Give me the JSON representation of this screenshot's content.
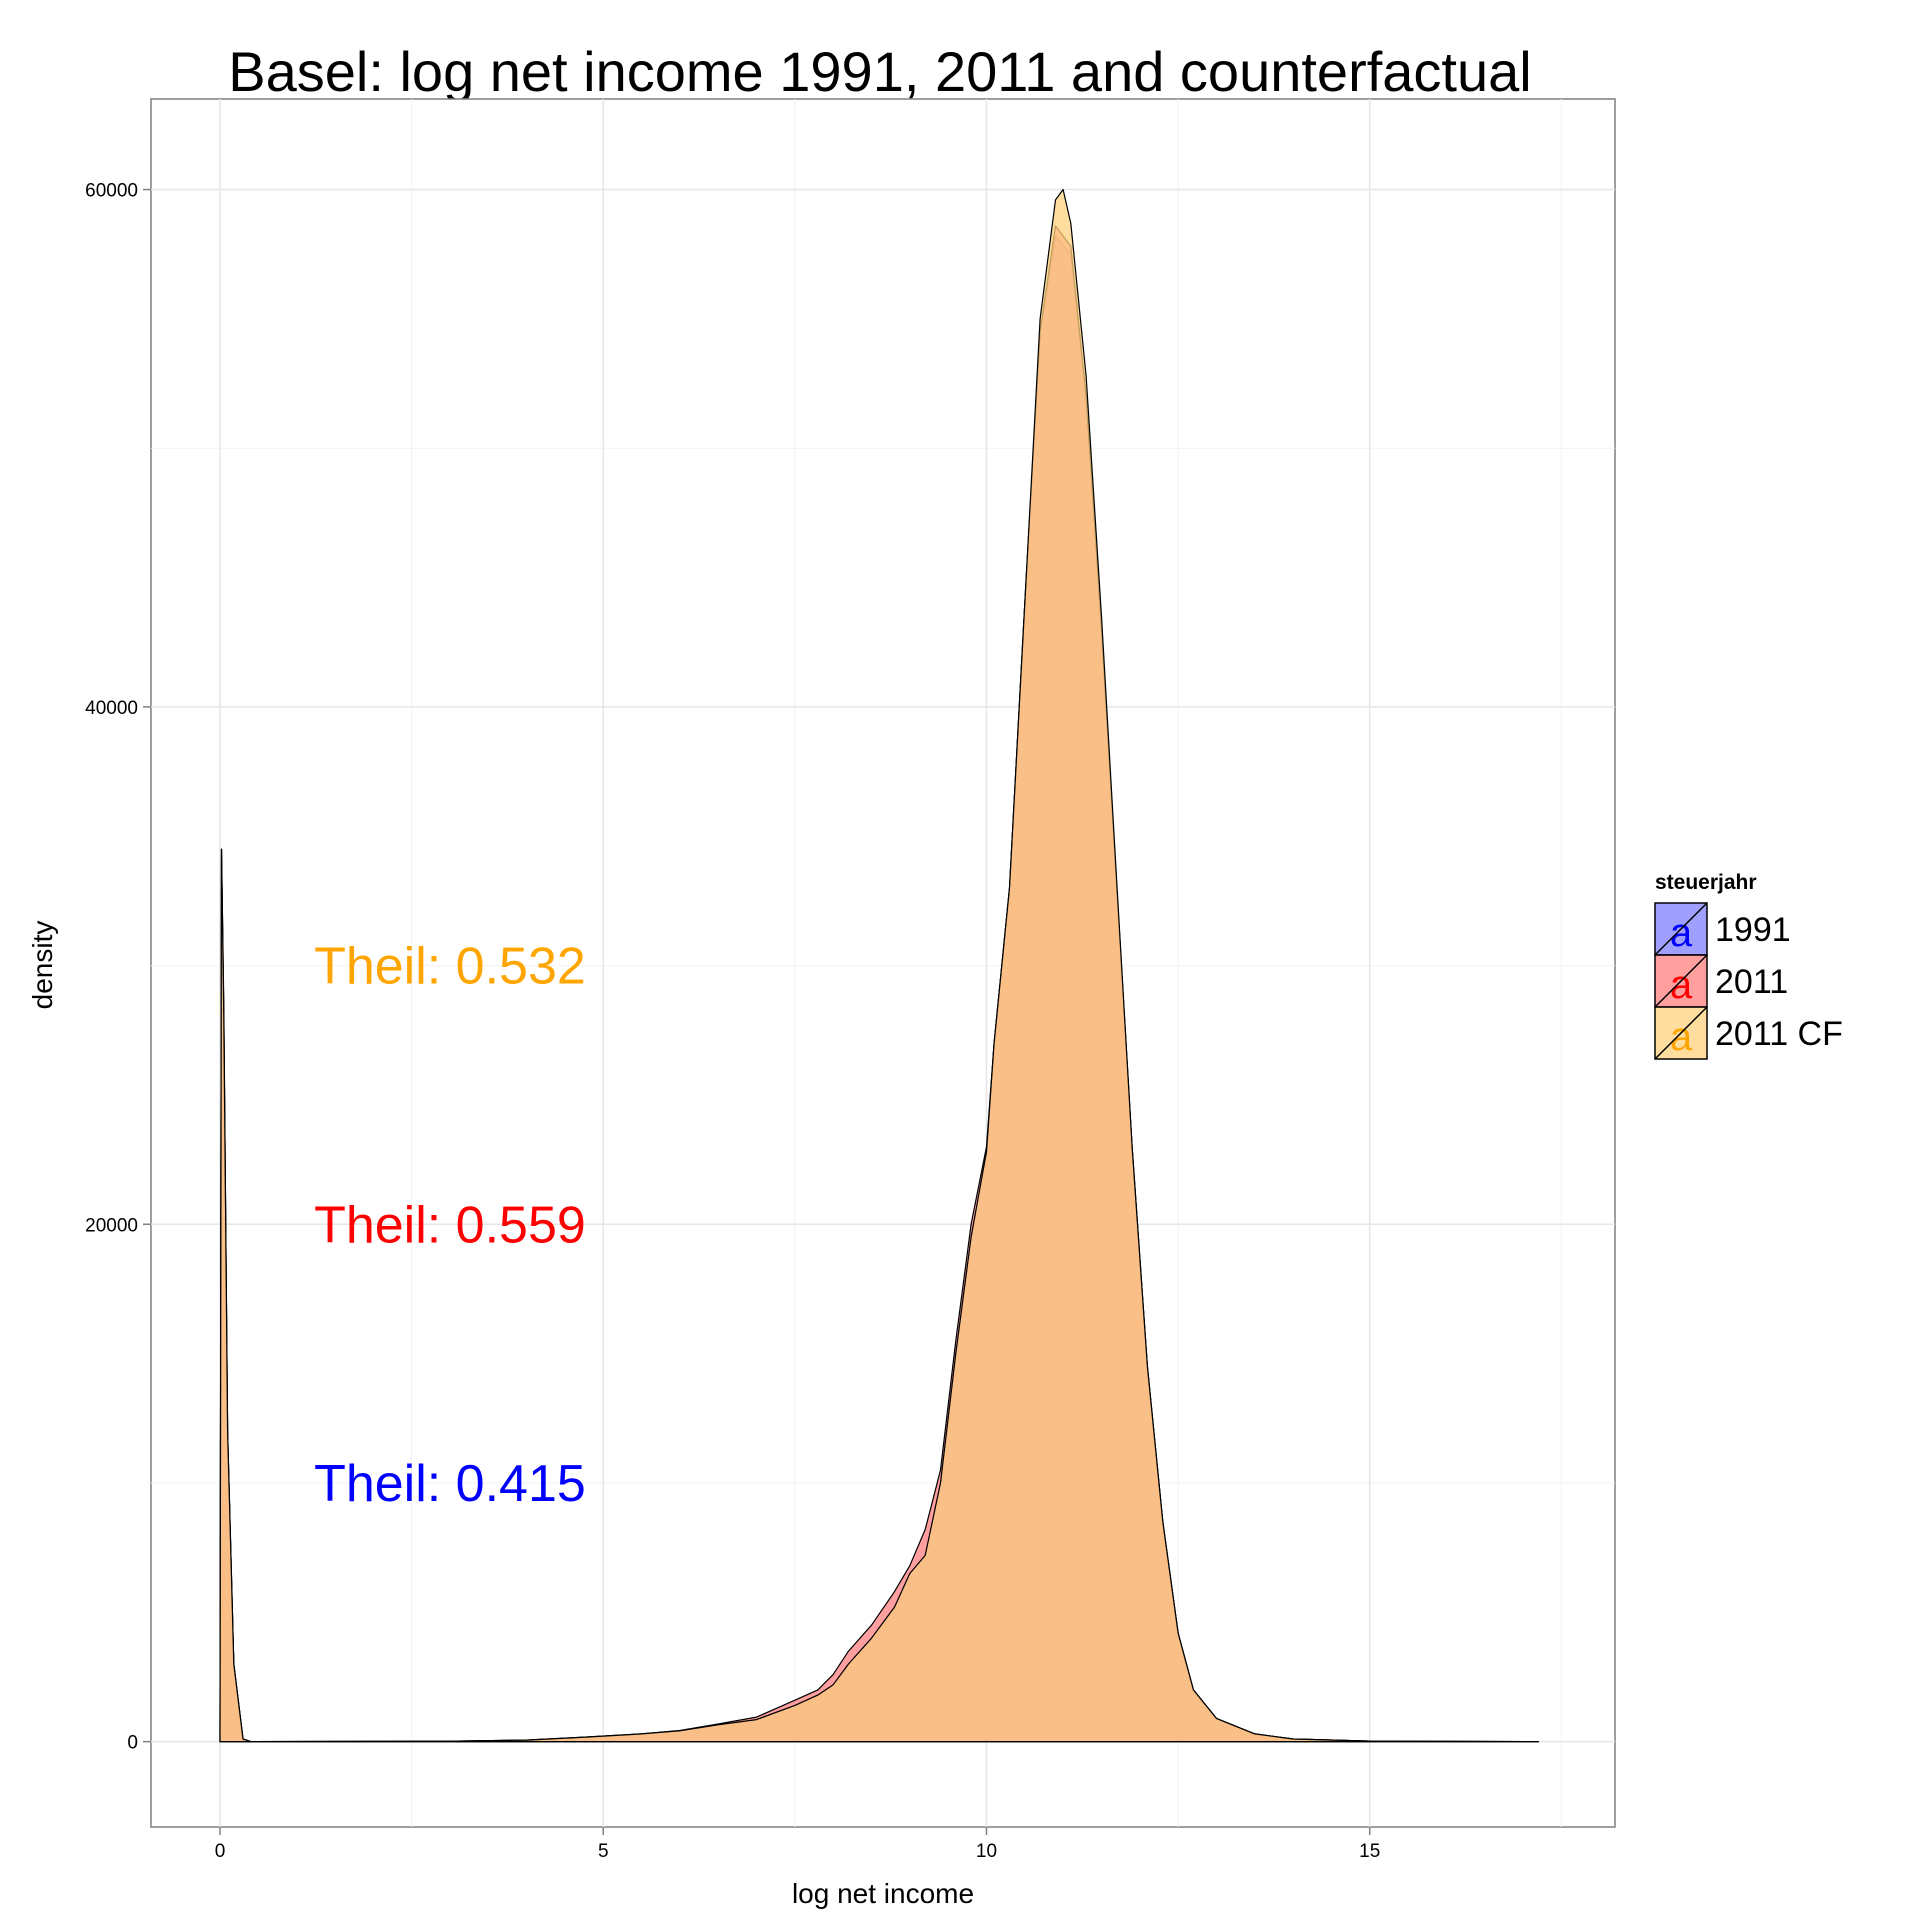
{
  "chart_data": {
    "type": "area",
    "subtype": "density",
    "title": "Basel: log net income 1991, 2011 and counterfactual",
    "xlabel": "log net income",
    "ylabel": "density",
    "xlim": [
      -0.9,
      18.2
    ],
    "ylim": [
      -3300,
      63500
    ],
    "x_ticks": [
      0,
      5,
      10,
      15
    ],
    "y_ticks": [
      0,
      20000,
      40000,
      60000
    ],
    "grid": true,
    "legend": {
      "title": "steuerjahr",
      "position": "right",
      "glyph": "a"
    },
    "series": [
      {
        "name": "1991",
        "color": "#0000ff",
        "fill": "#7f7fff",
        "points": [
          [
            0,
            0
          ],
          [
            0.02,
            34500
          ],
          [
            0.05,
            28000
          ],
          [
            0.1,
            12000
          ],
          [
            0.18,
            3000
          ],
          [
            0.3,
            100
          ],
          [
            0.4,
            0
          ],
          [
            3,
            15
          ],
          [
            4,
            60
          ],
          [
            4.8,
            180
          ],
          [
            5.5,
            300
          ],
          [
            6,
            420
          ],
          [
            6.5,
            650
          ],
          [
            7,
            850
          ],
          [
            7.5,
            1400
          ],
          [
            7.8,
            1800
          ],
          [
            8,
            2200
          ],
          [
            8.2,
            3000
          ],
          [
            8.5,
            4000
          ],
          [
            8.8,
            5200
          ],
          [
            9,
            6500
          ],
          [
            9.2,
            7200
          ],
          [
            9.4,
            10000
          ],
          [
            9.6,
            15000
          ],
          [
            9.8,
            19500
          ],
          [
            10,
            22800
          ],
          [
            10.1,
            27000
          ],
          [
            10.3,
            33000
          ],
          [
            10.5,
            44000
          ],
          [
            10.7,
            54500
          ],
          [
            10.9,
            58200
          ],
          [
            11.1,
            57500
          ],
          [
            11.3,
            52000
          ],
          [
            11.5,
            43000
          ],
          [
            11.7,
            33000
          ],
          [
            11.9,
            23000
          ],
          [
            12.1,
            14500
          ],
          [
            12.3,
            8500
          ],
          [
            12.5,
            4200
          ],
          [
            12.7,
            2000
          ],
          [
            13,
            900
          ],
          [
            13.5,
            300
          ],
          [
            14,
            100
          ],
          [
            15,
            20
          ],
          [
            17.2,
            0
          ]
        ]
      },
      {
        "name": "2011",
        "color": "#ff0000",
        "fill": "#ff7f7f",
        "points": [
          [
            0,
            0
          ],
          [
            0.02,
            34500
          ],
          [
            0.05,
            28500
          ],
          [
            0.1,
            12000
          ],
          [
            0.18,
            3000
          ],
          [
            0.3,
            100
          ],
          [
            0.4,
            0
          ],
          [
            3,
            15
          ],
          [
            4,
            60
          ],
          [
            4.8,
            180
          ],
          [
            5.5,
            300
          ],
          [
            6,
            430
          ],
          [
            6.5,
            680
          ],
          [
            7,
            950
          ],
          [
            7.5,
            1600
          ],
          [
            7.8,
            2000
          ],
          [
            8,
            2600
          ],
          [
            8.2,
            3500
          ],
          [
            8.5,
            4500
          ],
          [
            8.8,
            5800
          ],
          [
            9,
            6800
          ],
          [
            9.2,
            8200
          ],
          [
            9.4,
            10500
          ],
          [
            9.6,
            15500
          ],
          [
            9.8,
            20000
          ],
          [
            10,
            23000
          ],
          [
            10.1,
            27000
          ],
          [
            10.3,
            33000
          ],
          [
            10.5,
            44000
          ],
          [
            10.7,
            54500
          ],
          [
            10.9,
            58600
          ],
          [
            11.1,
            57800
          ],
          [
            11.3,
            52000
          ],
          [
            11.5,
            43000
          ],
          [
            11.7,
            33000
          ],
          [
            11.9,
            23000
          ],
          [
            12.1,
            14500
          ],
          [
            12.3,
            8500
          ],
          [
            12.5,
            4200
          ],
          [
            12.7,
            2000
          ],
          [
            13,
            900
          ],
          [
            13.5,
            300
          ],
          [
            14,
            100
          ],
          [
            15,
            20
          ],
          [
            17.2,
            0
          ]
        ]
      },
      {
        "name": "2011 CF",
        "color": "#ffa500",
        "fill": "#ffd27f",
        "points": [
          [
            0,
            0
          ],
          [
            0.02,
            34500
          ],
          [
            0.05,
            28000
          ],
          [
            0.1,
            12000
          ],
          [
            0.18,
            3000
          ],
          [
            0.3,
            100
          ],
          [
            0.4,
            0
          ],
          [
            3,
            15
          ],
          [
            4,
            60
          ],
          [
            4.8,
            180
          ],
          [
            5.5,
            300
          ],
          [
            6,
            420
          ],
          [
            6.5,
            650
          ],
          [
            7,
            850
          ],
          [
            7.5,
            1400
          ],
          [
            7.8,
            1800
          ],
          [
            8,
            2200
          ],
          [
            8.2,
            3000
          ],
          [
            8.5,
            4000
          ],
          [
            8.8,
            5200
          ],
          [
            9,
            6500
          ],
          [
            9.2,
            7200
          ],
          [
            9.4,
            10000
          ],
          [
            9.6,
            15000
          ],
          [
            9.8,
            19500
          ],
          [
            10,
            22800
          ],
          [
            10.1,
            27000
          ],
          [
            10.3,
            33000
          ],
          [
            10.5,
            44000
          ],
          [
            10.7,
            55000
          ],
          [
            10.9,
            59600
          ],
          [
            11.0,
            60000
          ],
          [
            11.1,
            58700
          ],
          [
            11.3,
            52800
          ],
          [
            11.5,
            43500
          ],
          [
            11.7,
            33200
          ],
          [
            11.9,
            23000
          ],
          [
            12.1,
            14500
          ],
          [
            12.3,
            8500
          ],
          [
            12.5,
            4200
          ],
          [
            12.7,
            2000
          ],
          [
            13,
            900
          ],
          [
            13.5,
            300
          ],
          [
            14,
            100
          ],
          [
            15,
            20
          ],
          [
            17.2,
            0
          ]
        ]
      }
    ],
    "annotations": [
      {
        "text": "Theil: 0.532",
        "x": 3,
        "y": 30000,
        "color": "#ffa500"
      },
      {
        "text": "Theil: 0.559",
        "x": 3,
        "y": 20000,
        "color": "#ff0000"
      },
      {
        "text": "Theil: 0.415",
        "x": 3,
        "y": 10000,
        "color": "#0000ff"
      }
    ]
  }
}
